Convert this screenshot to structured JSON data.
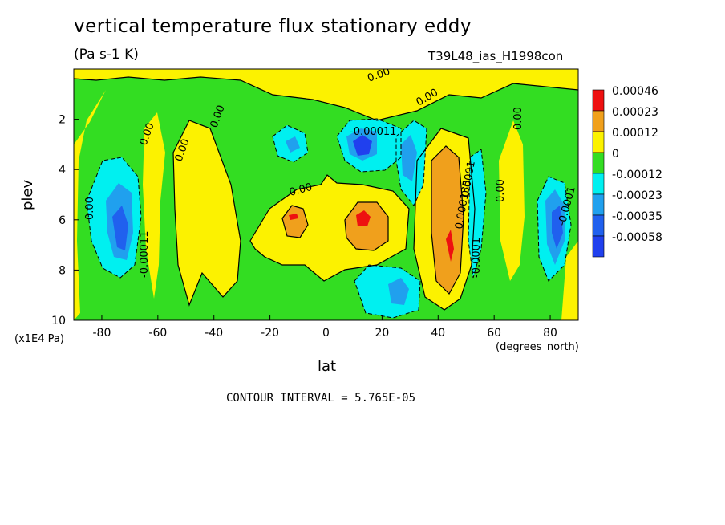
{
  "chart_data": {
    "type": "contour",
    "title": "vertical temperature flux stationary eddy",
    "units": "(Pa s-1 K)",
    "run_label": "T39L48_ias_H1998con",
    "xlabel": "lat",
    "x_units": "(degrees_north)",
    "ylabel": "plev",
    "y_scale_note": "(x1E4 Pa)",
    "xlim": [
      -90,
      90
    ],
    "ylim": [
      10,
      0
    ],
    "x_ticks": [
      "-80",
      "-60",
      "-40",
      "-20",
      "0",
      "20",
      "40",
      "60",
      "80"
    ],
    "y_ticks": [
      "2",
      "4",
      "6",
      "8",
      "10"
    ],
    "contour_interval": "CONTOUR INTERVAL = 5.765E-05",
    "colorbar": [
      {
        "label": "0.00046",
        "color": "#ee1010"
      },
      {
        "label": "0.00023",
        "color": "#f0a01c"
      },
      {
        "label": "0.00012",
        "color": "#fcf200"
      },
      {
        "label": "0",
        "color": "#33dd22"
      },
      {
        "label": "-0.00012",
        "color": "#00f0f0"
      },
      {
        "label": "-0.00023",
        "color": "#20a0ee"
      },
      {
        "label": "-0.00035",
        "color": "#2060ee"
      },
      {
        "label": "-0.00058",
        "color": "#2040ee"
      }
    ],
    "contour_labels": [
      "0.00",
      "0.00",
      "0.00",
      "0.00",
      "0.00",
      "0.00",
      "0.00",
      "0.00",
      "0.00",
      "-0.00011",
      "-0.00011",
      "0.000135",
      "-0.0001",
      "0.0001",
      "-0.0001"
    ],
    "features": [
      {
        "lat": -68,
        "plev": 6.5,
        "value": -0.00035
      },
      {
        "lat": -12,
        "plev": 6.0,
        "value": 0.00046
      },
      {
        "lat": 12,
        "plev": 6.0,
        "value": 0.00046
      },
      {
        "lat": 12,
        "plev": 3.0,
        "value": -0.00058
      },
      {
        "lat": 28,
        "plev": 4.0,
        "value": -0.00023
      },
      {
        "lat": 44,
        "plev": 7.0,
        "value": 0.00046
      },
      {
        "lat": 54,
        "plev": 6.0,
        "value": -0.00023
      },
      {
        "lat": 82,
        "plev": 6.5,
        "value": -0.00035
      },
      {
        "lat": 24,
        "plev": 9.0,
        "value": -0.00035
      }
    ]
  }
}
